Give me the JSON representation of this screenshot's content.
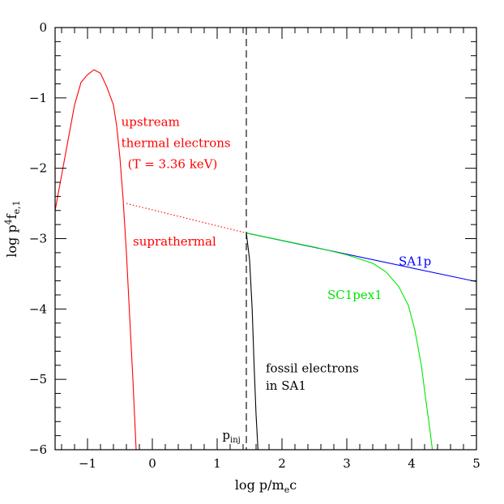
{
  "chart_data": {
    "type": "line",
    "xlim": [
      -1.5,
      5
    ],
    "ylim": [
      -6,
      0
    ],
    "x_ticks": [
      -1,
      0,
      1,
      2,
      3,
      4,
      5
    ],
    "y_ticks": [
      0,
      -1,
      -2,
      -3,
      -4,
      -5,
      -6
    ],
    "x_tick_labels": [
      "−1",
      "0",
      "1",
      "2",
      "3",
      "4",
      "5"
    ],
    "y_tick_labels": [
      "0",
      "−1",
      "−2",
      "−3",
      "−4",
      "−5",
      "−6"
    ],
    "xlabel": {
      "main": "log p/m",
      "sub": "e",
      "tail": "c"
    },
    "ylabel": {
      "main": "log p",
      "sup": "4",
      "mid": "f",
      "sub": "e,1"
    },
    "grid": false,
    "series": [
      {
        "key": "thermal",
        "color": "#ff0000",
        "style": "solid",
        "points": [
          [
            -1.5,
            -2.6
          ],
          [
            -1.4,
            -2.1
          ],
          [
            -1.3,
            -1.6
          ],
          [
            -1.2,
            -1.1
          ],
          [
            -1.1,
            -0.78
          ],
          [
            -1.0,
            -0.67
          ],
          [
            -0.9,
            -0.6
          ],
          [
            -0.8,
            -0.65
          ],
          [
            -0.7,
            -0.85
          ],
          [
            -0.6,
            -1.1
          ],
          [
            -0.55,
            -1.4
          ],
          [
            -0.5,
            -1.85
          ],
          [
            -0.45,
            -2.45
          ],
          [
            -0.4,
            -3.2
          ],
          [
            -0.35,
            -4.1
          ],
          [
            -0.3,
            -5.0
          ],
          [
            -0.27,
            -5.6
          ],
          [
            -0.25,
            -6.0
          ]
        ]
      },
      {
        "key": "suprathermal",
        "color": "#ff0000",
        "style": "dotted",
        "points": [
          [
            -0.4,
            -2.5
          ],
          [
            1.45,
            -2.92
          ]
        ]
      },
      {
        "name": "SA1p",
        "color": "#0000ff",
        "style": "solid",
        "points": [
          [
            1.45,
            -2.92
          ],
          [
            5.0,
            -3.61
          ]
        ]
      },
      {
        "name": "SC1pex1",
        "color": "#00e600",
        "style": "solid",
        "points": [
          [
            1.45,
            -2.92
          ],
          [
            2.5,
            -3.12
          ],
          [
            3.0,
            -3.23
          ],
          [
            3.4,
            -3.35
          ],
          [
            3.6,
            -3.47
          ],
          [
            3.8,
            -3.68
          ],
          [
            3.95,
            -3.95
          ],
          [
            4.05,
            -4.3
          ],
          [
            4.15,
            -4.8
          ],
          [
            4.22,
            -5.3
          ],
          [
            4.28,
            -5.7
          ],
          [
            4.32,
            -6.0
          ]
        ]
      },
      {
        "key": "fossil",
        "color": "#000000",
        "style": "solid",
        "points": [
          [
            1.45,
            -2.92
          ],
          [
            1.5,
            -3.3
          ],
          [
            1.54,
            -4.0
          ],
          [
            1.57,
            -4.8
          ],
          [
            1.6,
            -5.5
          ],
          [
            1.63,
            -6.0
          ]
        ]
      }
    ],
    "vlines": [
      {
        "x": 1.45,
        "style": "dashed",
        "color": "#000000"
      }
    ],
    "annotations": [
      {
        "key": "upstream",
        "text": "upstream",
        "x": -0.48,
        "y": -1.4,
        "color": "#ff0000"
      },
      {
        "key": "thermal_electrons",
        "text": "thermal electrons",
        "x": -0.48,
        "y": -1.7,
        "color": "#ff0000"
      },
      {
        "key": "temperature",
        "text": "(T = 3.36 keV)",
        "x": -0.38,
        "y": -2.0,
        "color": "#ff0000"
      },
      {
        "key": "suprathermal",
        "text": "suprathermal",
        "x": -0.3,
        "y": -3.1,
        "color": "#ff0000"
      },
      {
        "key": "sa1p",
        "text": "SA1p",
        "x": 3.8,
        "y": -3.38,
        "color": "#0000ff"
      },
      {
        "key": "sc1pex1",
        "text": "SC1pex1",
        "x": 2.7,
        "y": -3.86,
        "color": "#00e600"
      },
      {
        "key": "fossil_electrons",
        "text": "fossil electrons",
        "x": 1.75,
        "y": -4.9,
        "color": "#000000"
      },
      {
        "key": "in_sa1",
        "text": "in SA1",
        "x": 1.75,
        "y": -5.15,
        "color": "#000000"
      }
    ],
    "p_inj_label": {
      "main": "p",
      "sub": "inj",
      "x": 1.08,
      "y": -5.85
    }
  }
}
